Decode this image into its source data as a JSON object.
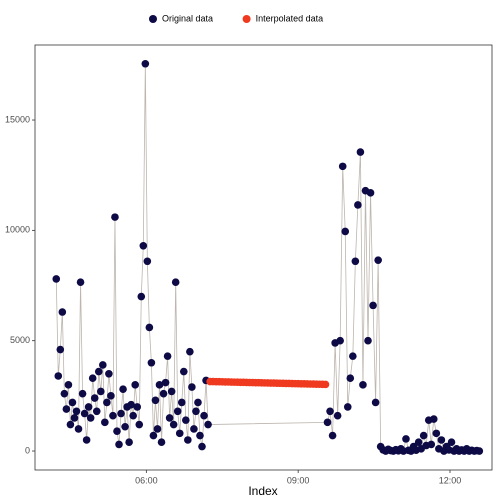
{
  "chart_data": {
    "type": "scatter",
    "x_label": "Index",
    "xlim": [
      3.8,
      12.83
    ],
    "ylim": [
      -860,
      18400
    ],
    "xticks": [
      {
        "value": 6,
        "label": "06:00"
      },
      {
        "value": 9,
        "label": "09:00"
      },
      {
        "value": 12,
        "label": "12:00"
      }
    ],
    "yticks": [
      0,
      5000,
      10000,
      15000
    ],
    "grid": false,
    "legend": "top",
    "line_color": "#bdb5ae",
    "series": [
      {
        "name": "Original data",
        "color": "#0d0a45",
        "x": [
          4.22,
          4.26,
          4.3,
          4.34,
          4.38,
          4.42,
          4.46,
          4.5,
          4.54,
          4.58,
          4.62,
          4.66,
          4.7,
          4.74,
          4.78,
          4.82,
          4.86,
          4.9,
          4.94,
          4.98,
          5.02,
          5.06,
          5.1,
          5.14,
          5.18,
          5.22,
          5.26,
          5.3,
          5.34,
          5.38,
          5.42,
          5.46,
          5.5,
          5.54,
          5.58,
          5.62,
          5.66,
          5.7,
          5.74,
          5.78,
          5.82,
          5.86,
          5.9,
          5.94,
          5.98,
          6.02,
          6.06,
          6.1,
          6.14,
          6.18,
          6.22,
          6.26,
          6.3,
          6.34,
          6.38,
          6.42,
          6.46,
          6.5,
          6.54,
          6.58,
          6.62,
          6.66,
          6.7,
          6.74,
          6.78,
          6.82,
          6.86,
          6.9,
          6.94,
          6.98,
          7.02,
          7.06,
          7.1,
          7.14,
          7.18,
          7.22,
          9.58,
          9.63,
          9.68,
          9.73,
          9.78,
          9.83,
          9.88,
          9.93,
          9.98,
          10.03,
          10.08,
          10.13,
          10.18,
          10.23,
          10.28,
          10.33,
          10.38,
          10.43,
          10.48,
          10.53,
          10.58,
          10.63,
          10.68,
          10.73,
          10.78,
          10.83,
          10.88,
          10.93,
          10.98,
          11.03,
          11.08,
          11.13,
          11.18,
          11.23,
          11.28,
          11.33,
          11.38,
          11.43,
          11.48,
          11.53,
          11.58,
          11.63,
          11.68,
          11.73,
          11.78,
          11.83,
          11.88,
          11.93,
          11.98,
          12.03,
          12.08,
          12.13,
          12.18,
          12.23,
          12.28,
          12.33,
          12.38,
          12.43,
          12.48,
          12.53,
          12.58
        ],
        "values": [
          7800,
          3400,
          4600,
          6300,
          2600,
          1900,
          3000,
          1200,
          2200,
          1500,
          1800,
          1000,
          7650,
          2600,
          1700,
          500,
          2000,
          1500,
          3300,
          2400,
          1800,
          3600,
          2700,
          3900,
          1300,
          2200,
          3500,
          2500,
          1600,
          10600,
          900,
          300,
          1700,
          2800,
          1100,
          2000,
          400,
          2100,
          1600,
          3000,
          2000,
          1200,
          7000,
          9300,
          17550,
          8600,
          5600,
          4000,
          700,
          2300,
          1000,
          3000,
          400,
          2600,
          3100,
          4300,
          1500,
          2700,
          1200,
          7650,
          1800,
          800,
          2200,
          3600,
          1400,
          500,
          4500,
          2900,
          1000,
          1800,
          2200,
          700,
          200,
          1600,
          3200,
          1200,
          1300,
          1800,
          700,
          4900,
          1600,
          5000,
          12900,
          9950,
          2000,
          3300,
          4300,
          8600,
          11150,
          13550,
          3000,
          11800,
          5000,
          11700,
          6600,
          2200,
          8650,
          200,
          50,
          0,
          80,
          20,
          0,
          60,
          10,
          100,
          0,
          550,
          30,
          0,
          200,
          40,
          400,
          100,
          700,
          250,
          1400,
          300,
          1450,
          800,
          100,
          500,
          0,
          200,
          50,
          400,
          0,
          100,
          0,
          50,
          0,
          100,
          0,
          30,
          0,
          20,
          0
        ]
      },
      {
        "name": "Interpolated data",
        "color": "#f03a20",
        "x": [
          7.26,
          7.32,
          7.38,
          7.44,
          7.5,
          7.56,
          7.62,
          7.68,
          7.74,
          7.8,
          7.86,
          7.92,
          7.98,
          8.04,
          8.1,
          8.16,
          8.22,
          8.28,
          8.34,
          8.4,
          8.46,
          8.52,
          8.58,
          8.64,
          8.7,
          8.76,
          8.82,
          8.88,
          8.94,
          9,
          9.06,
          9.12,
          9.18,
          9.24,
          9.3,
          9.36,
          9.42,
          9.48,
          9.54
        ],
        "values": [
          3150,
          3146,
          3143,
          3140,
          3136,
          3133,
          3129,
          3126,
          3122,
          3119,
          3116,
          3112,
          3109,
          3105,
          3102,
          3098,
          3095,
          3092,
          3088,
          3085,
          3081,
          3078,
          3074,
          3071,
          3068,
          3064,
          3061,
          3057,
          3054,
          3050,
          3047,
          3044,
          3040,
          3037,
          3033,
          3030,
          3026,
          3023,
          3020
        ]
      }
    ]
  }
}
